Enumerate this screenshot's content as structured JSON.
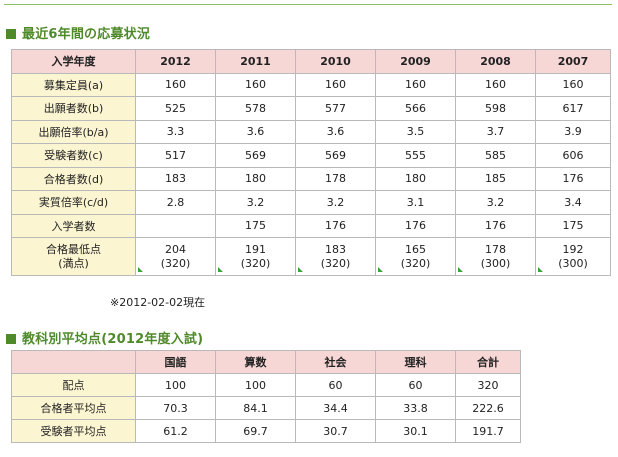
{
  "section1": {
    "title": "最近6年間の応募状況",
    "header_label": "入学年度",
    "years": [
      "2012",
      "2011",
      "2010",
      "2009",
      "2008",
      "2007"
    ],
    "rows": [
      {
        "label": "募集定員(a)",
        "values": [
          "160",
          "160",
          "160",
          "160",
          "160",
          "160"
        ]
      },
      {
        "label": "出願者数(b)",
        "values": [
          "525",
          "578",
          "577",
          "566",
          "598",
          "617"
        ]
      },
      {
        "label": "出願倍率(b/a)",
        "values": [
          "3.3",
          "3.6",
          "3.6",
          "3.5",
          "3.7",
          "3.9"
        ]
      },
      {
        "label": "受験者数(c)",
        "values": [
          "517",
          "569",
          "569",
          "555",
          "585",
          "606"
        ]
      },
      {
        "label": "合格者数(d)",
        "values": [
          "183",
          "180",
          "178",
          "180",
          "185",
          "176"
        ]
      },
      {
        "label": "実質倍率(c/d)",
        "values": [
          "2.8",
          "3.2",
          "3.2",
          "3.1",
          "3.2",
          "3.4"
        ]
      },
      {
        "label": "入学者数",
        "values": [
          "",
          "175",
          "176",
          "176",
          "176",
          "175"
        ]
      }
    ],
    "low_row": {
      "label_line1": "合格最低点",
      "label_line2": "(満点)",
      "scores": [
        "204",
        "191",
        "183",
        "165",
        "178",
        "192"
      ],
      "max": [
        "(320)",
        "(320)",
        "(320)",
        "(320)",
        "(300)",
        "(300)"
      ]
    },
    "note": "※2012-02-02現在"
  },
  "section2": {
    "title": "教科別平均点(2012年度入試)",
    "subjects": [
      "国語",
      "算数",
      "社会",
      "理科",
      "合計"
    ],
    "rows": [
      {
        "label": "配点",
        "values": [
          "100",
          "100",
          "60",
          "60",
          "320"
        ]
      },
      {
        "label": "合格者平均点",
        "values": [
          "70.3",
          "84.1",
          "34.4",
          "33.8",
          "222.6"
        ]
      },
      {
        "label": "受験者平均点",
        "values": [
          "61.2",
          "69.7",
          "30.7",
          "30.1",
          "191.7"
        ]
      }
    ]
  },
  "colors": {
    "accent": "#4f8a2a",
    "header_bg": "#f7d7d6",
    "label_bg": "#fbf5d2"
  }
}
